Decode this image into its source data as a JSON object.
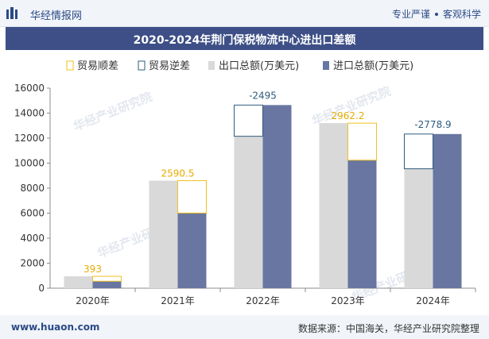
{
  "header": {
    "brand": "华经情报网",
    "tag_left": "专业严谨",
    "tag_right": "客观科学"
  },
  "footer": {
    "site": "www.huaon.com",
    "source": "数据来源：中国海关，华经产业研究院整理"
  },
  "watermark": "华经产业研究院",
  "chart_data": {
    "type": "bar",
    "title": "2020-2024年荆门保税物流中心进出口差额",
    "categories": [
      "2020年",
      "2021年",
      "2022年",
      "2023年",
      "2024年"
    ],
    "series": [
      {
        "name": "出口总额(万美元)",
        "values": [
          950,
          8600,
          12150,
          13200,
          9550
        ]
      },
      {
        "name": "进口总额(万美元)",
        "values": [
          557,
          6009.5,
          14645,
          10237.8,
          12328.9
        ]
      }
    ],
    "balance": {
      "values": [
        393,
        2590.5,
        -2495,
        2962.2,
        -2778.9
      ],
      "labels": [
        "393",
        "2590.5",
        "-2495",
        "2962.2",
        "-2778.9"
      ],
      "surplus_name": "贸易顺差",
      "deficit_name": "贸易逆差"
    },
    "ylim": [
      0,
      16000
    ],
    "yticks": [
      "0",
      "2000",
      "4000",
      "6000",
      "8000",
      "10000",
      "12000",
      "14000",
      "16000"
    ],
    "grid": false,
    "legend_position": "top",
    "colors": {
      "export": "#d9d9d9",
      "import": "#6876a1",
      "surplus": "#f0c020",
      "deficit": "#2e5c7e",
      "surplus_label": "#e6ac00",
      "deficit_label": "#2e5c7e"
    }
  }
}
